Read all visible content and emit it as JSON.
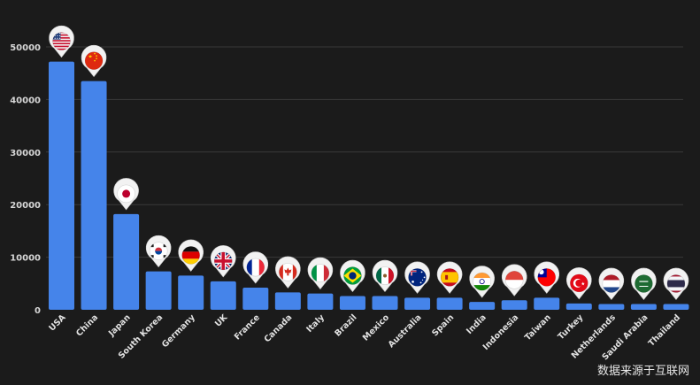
{
  "chart_data": {
    "type": "bar",
    "categories": [
      "USA",
      "China",
      "Japan",
      "South Korea",
      "Germany",
      "UK",
      "France",
      "Canada",
      "Italy",
      "Brazil",
      "Mexico",
      "Australia",
      "Spain",
      "India",
      "Indonesia",
      "Taiwan",
      "Turkey",
      "Netherlands",
      "Saudi Arabia",
      "Thailand"
    ],
    "values": [
      47200,
      43500,
      18200,
      7300,
      6500,
      5400,
      4200,
      3300,
      3100,
      2600,
      2600,
      2300,
      2300,
      1500,
      1800,
      2300,
      1200,
      1100,
      1100,
      1100
    ],
    "yticks": [
      0,
      10000,
      20000,
      30000,
      40000,
      50000
    ],
    "ylim": [
      0,
      50000
    ],
    "grid": true,
    "title": "",
    "xlabel": "",
    "ylabel": "",
    "bar_color": "#4584ea",
    "flag_icons": [
      "flag-usa-icon",
      "flag-china-icon",
      "flag-japan-icon",
      "flag-south-korea-icon",
      "flag-germany-icon",
      "flag-uk-icon",
      "flag-france-icon",
      "flag-canada-icon",
      "flag-italy-icon",
      "flag-brazil-icon",
      "flag-mexico-icon",
      "flag-australia-icon",
      "flag-spain-icon",
      "flag-india-icon",
      "flag-indonesia-icon",
      "flag-taiwan-icon",
      "flag-turkey-icon",
      "flag-netherlands-icon",
      "flag-saudi-arabia-icon",
      "flag-thailand-icon"
    ]
  },
  "watermark": "数据来源于互联网"
}
